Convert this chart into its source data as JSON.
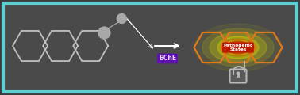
{
  "bg_outer": "#3d3d3d",
  "bg_inner": "#4a4a4a",
  "border_color": "#5ecece",
  "border_lw": 3,
  "molecule_color": "#c0c0c0",
  "molecule_lw": 1.3,
  "probe_color": "#a8a8a8",
  "arrow_color": "#ffffff",
  "bche_label": "BChE",
  "bche_bg": "#6010b0",
  "bche_text_color": "#e8d0ff",
  "bche_fontsize": 5.5,
  "hex_color": "#e07818",
  "hex_lw": 1.6,
  "glow_yellow": "#d4d400",
  "glow_red": "#cc1800",
  "pathogenic_label": "Pathogenic\nStates",
  "pathogenic_fontsize": 4.2,
  "pathogenic_text_color": "#ffffff",
  "lock_color": "#b8b8b8",
  "figsize": [
    3.78,
    1.2
  ],
  "dpi": 100
}
